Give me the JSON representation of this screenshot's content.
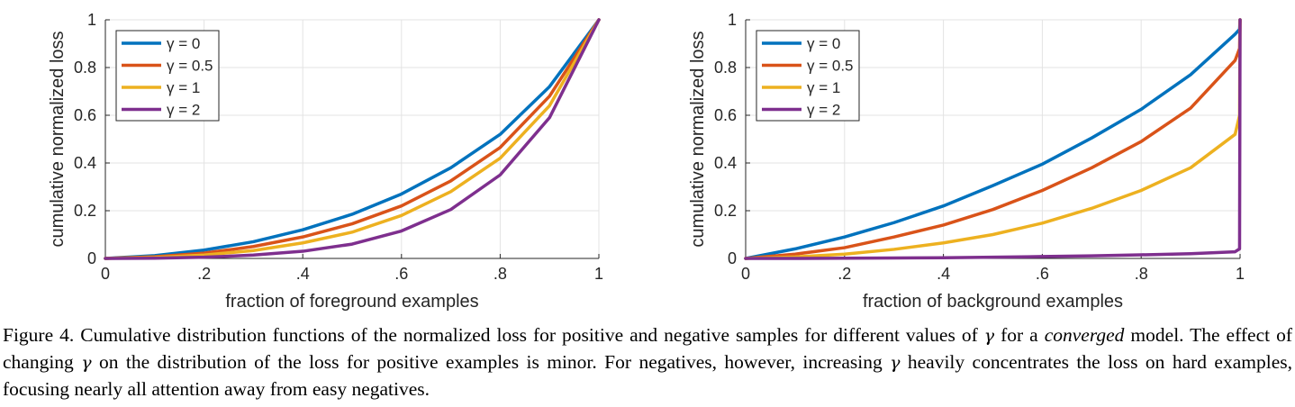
{
  "chart_data": [
    {
      "type": "line",
      "title": "",
      "xlabel": "fraction of foreground examples",
      "ylabel": "cumulative normalized loss",
      "xlim": [
        0,
        1
      ],
      "ylim": [
        0,
        1
      ],
      "xtick_labels": [
        "0",
        ".2",
        ".4",
        ".6",
        ".8",
        "1"
      ],
      "ytick_labels": [
        "0",
        "0.2",
        "0.4",
        "0.6",
        "0.8",
        "1"
      ],
      "grid": true,
      "legend_position": "top-left",
      "x": [
        0,
        0.1,
        0.2,
        0.3,
        0.4,
        0.5,
        0.6,
        0.7,
        0.8,
        0.9,
        1.0
      ],
      "series": [
        {
          "name": "γ = 0",
          "color": "#0072BD",
          "values": [
            0,
            0.012,
            0.035,
            0.07,
            0.12,
            0.185,
            0.27,
            0.38,
            0.52,
            0.72,
            1.0
          ]
        },
        {
          "name": "γ = 0.5",
          "color": "#D95319",
          "values": [
            0,
            0.007,
            0.022,
            0.05,
            0.09,
            0.145,
            0.22,
            0.325,
            0.465,
            0.68,
            1.0
          ]
        },
        {
          "name": "γ = 1",
          "color": "#EDB120",
          "values": [
            0,
            0.004,
            0.014,
            0.033,
            0.065,
            0.11,
            0.18,
            0.28,
            0.42,
            0.64,
            1.0
          ]
        },
        {
          "name": "γ = 2",
          "color": "#7E2F8E",
          "values": [
            0,
            0.001,
            0.005,
            0.014,
            0.03,
            0.06,
            0.115,
            0.205,
            0.35,
            0.59,
            1.0
          ]
        }
      ]
    },
    {
      "type": "line",
      "title": "",
      "xlabel": "fraction of background examples",
      "ylabel": "cumulative normalized loss",
      "xlim": [
        0,
        1
      ],
      "ylim": [
        0,
        1
      ],
      "xtick_labels": [
        "0",
        ".2",
        ".4",
        ".6",
        ".8",
        "1"
      ],
      "ytick_labels": [
        "0",
        "0.2",
        "0.4",
        "0.6",
        "0.8",
        "1"
      ],
      "grid": true,
      "legend_position": "top-left",
      "x": [
        0,
        0.1,
        0.2,
        0.3,
        0.4,
        0.5,
        0.6,
        0.7,
        0.8,
        0.9,
        0.99,
        0.999,
        1.0
      ],
      "series": [
        {
          "name": "γ = 0",
          "color": "#0072BD",
          "values": [
            0,
            0.04,
            0.09,
            0.15,
            0.22,
            0.305,
            0.395,
            0.505,
            0.625,
            0.77,
            0.94,
            0.96,
            1.0
          ]
        },
        {
          "name": "γ = 0.5",
          "color": "#D95319",
          "values": [
            0,
            0.018,
            0.045,
            0.09,
            0.14,
            0.205,
            0.285,
            0.38,
            0.49,
            0.63,
            0.83,
            0.88,
            1.0
          ]
        },
        {
          "name": "γ = 1",
          "color": "#EDB120",
          "values": [
            0,
            0.006,
            0.018,
            0.038,
            0.065,
            0.1,
            0.148,
            0.21,
            0.285,
            0.38,
            0.52,
            0.6,
            1.0
          ]
        },
        {
          "name": "γ = 2",
          "color": "#7E2F8E",
          "values": [
            0,
            0.0,
            0.001,
            0.002,
            0.003,
            0.005,
            0.008,
            0.011,
            0.015,
            0.02,
            0.028,
            0.04,
            1.0
          ]
        }
      ]
    }
  ],
  "caption": {
    "p1": "Figure 4. Cumulative distribution functions of the normalized loss for positive and negative samples for different values of ",
    "gamma": "γ",
    "p2": " for a ",
    "p3": "converged",
    "p4": " model. The effect of changing ",
    "p5": " on the distribution of the loss for positive examples is minor. For negatives, however, increasing ",
    "p6": " heavily concentrates the loss on hard examples, focusing nearly all attention away from easy negatives."
  }
}
